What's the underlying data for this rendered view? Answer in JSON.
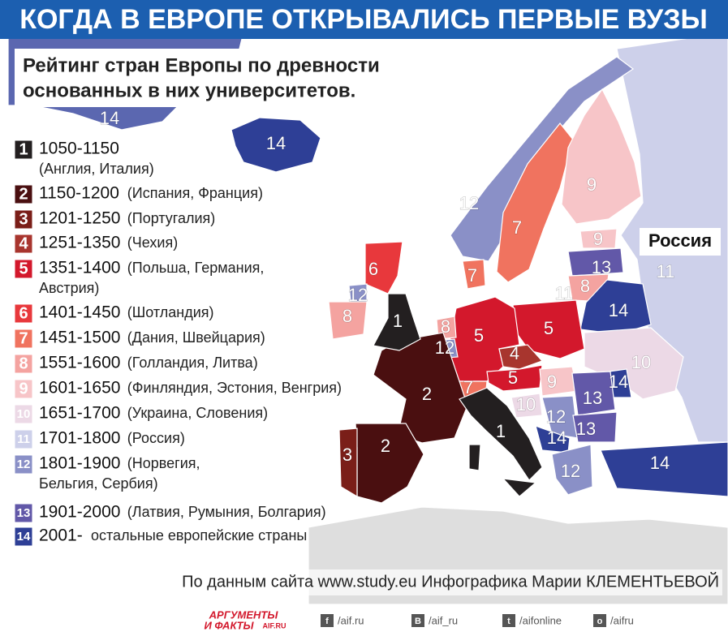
{
  "header": {
    "title": "КОГДА В ЕВРОПЕ ОТКРЫВАЛИСЬ ПЕРВЫЕ ВУЗЫ"
  },
  "subtitle": [
    "Рейтинг стран Европы по древности",
    "основанных в них университетов."
  ],
  "legend": [
    {
      "rank": "1",
      "color": "#231f20",
      "period": "1050-1150",
      "countries": [
        "(Англия, Италия)"
      ]
    },
    {
      "rank": "2",
      "color": "#4a0f10",
      "period": "1150-1200",
      "countries": [
        "(Испания, Франция)"
      ]
    },
    {
      "rank": "3",
      "color": "#7a1e18",
      "period": "1201-1250",
      "countries": [
        "(Португалия)"
      ]
    },
    {
      "rank": "4",
      "color": "#a8352e",
      "period": "1251-1350",
      "countries": [
        "(Чехия)"
      ]
    },
    {
      "rank": "5",
      "color": "#d3182c",
      "period": "1351-1400",
      "countries": [
        "(Польша, Германия,",
        "Австрия)"
      ]
    },
    {
      "rank": "6",
      "color": "#e8383c",
      "period": "1401-1450",
      "countries": [
        "(Шотландия)"
      ]
    },
    {
      "rank": "7",
      "color": "#f0735f",
      "period": "1451-1500",
      "countries": [
        "(Дания, Швейцария)"
      ]
    },
    {
      "rank": "8",
      "color": "#f4a3a0",
      "period": "1551-1600",
      "countries": [
        "(Голландия, Литва)"
      ]
    },
    {
      "rank": "9",
      "color": "#f7c5c8",
      "period": "1601-1650",
      "countries": [
        "(Финляндия, Эстония, Венгрия)"
      ]
    },
    {
      "rank": "10",
      "color": "#ecd9e6",
      "period": "1651-1700",
      "countries": [
        "(Украина, Словения)"
      ]
    },
    {
      "rank": "11",
      "color": "#cdd0ea",
      "period": "1701-1800",
      "countries": [
        "(Россия)"
      ]
    },
    {
      "rank": "12",
      "color": "#8a90c7",
      "period": "1801-1900",
      "countries": [
        "(Норвегия,",
        "Бельгия, Сербия)"
      ]
    },
    {
      "rank": "13",
      "color": "#6258a8",
      "period": "1901-2000",
      "countries": [
        "(Латвия, Румыния, Болгария)"
      ]
    },
    {
      "rank": "14",
      "color": "#2e3f96",
      "period": "2001-",
      "countries": [
        "остальные европейские страны"
      ]
    }
  ],
  "map_labels": [
    "14",
    "14",
    "12",
    "7",
    "9",
    "9",
    "13",
    "8",
    "11",
    "11",
    "Россия",
    "14",
    "6",
    "12",
    "8",
    "1",
    "7",
    "8",
    "12",
    "5",
    "5",
    "4",
    "5",
    "7",
    "2",
    "9",
    "10",
    "14",
    "10",
    "13",
    "12",
    "13",
    "14",
    "1",
    "2",
    "3",
    "12",
    "14"
  ],
  "source": "По данным сайта www.study.eu Инфографика Марии КЛЕМЕНТЬЕВОЙ",
  "footer": {
    "brand": [
      "АРГУМЕНТЫ",
      "И ФАКТЫ"
    ],
    "brand_site": "AIF.RU",
    "links": [
      {
        "icon": "f",
        "text": "/aif.ru"
      },
      {
        "icon": "B",
        "text": "/aif_ru"
      },
      {
        "icon": "t",
        "text": "/aifonline"
      },
      {
        "icon": "o",
        "text": "/aifru"
      }
    ]
  }
}
